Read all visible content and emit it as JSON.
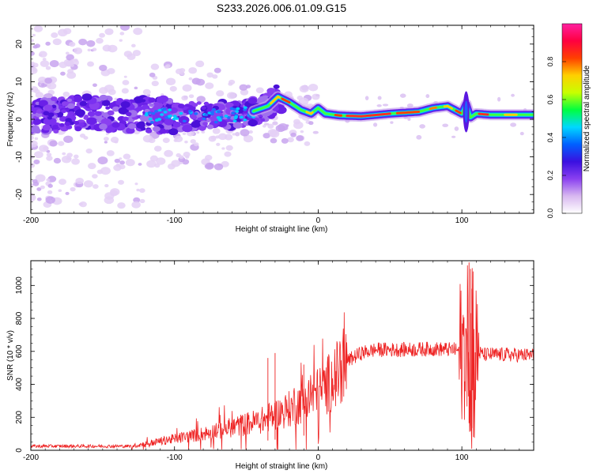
{
  "title": "S233.2026.006.01.09.G15",
  "chart_data": [
    {
      "type": "heatmap",
      "name": "spectrogram",
      "xlabel": "Height of straight line (km)",
      "ylabel": "Frequency (Hz)",
      "xlim": [
        -200,
        150
      ],
      "ylim": [
        -25,
        25
      ],
      "xticks": [
        -200,
        -100,
        0,
        100
      ],
      "xtick_labels": [
        "-200",
        "-100",
        "0",
        "100"
      ],
      "yticks": [
        -20,
        -10,
        0,
        10,
        20
      ],
      "ytick_labels": [
        "-20",
        "-10",
        "0",
        "10",
        "20"
      ],
      "grid": false,
      "colorbar": {
        "label": "Normalized spectral amplitude",
        "range": [
          0.0,
          1.0
        ],
        "ticks": [
          0.0,
          0.2,
          0.4,
          0.6,
          0.8
        ],
        "tick_labels": [
          "0.0",
          "0.2",
          "0.4",
          "0.6",
          "0.8"
        ],
        "colors": [
          "#ffffff",
          "#d8b8f0",
          "#8a40f0",
          "#3a10e0",
          "#0060ff",
          "#00d8ff",
          "#00ff40",
          "#c8ff00",
          "#ffd000",
          "#ff4000",
          "#ff0040",
          "#ff20a0"
        ]
      },
      "ridge": {
        "description": "dominant frequency track vs height",
        "x": [
          -200,
          -160,
          -120,
          -80,
          -50,
          -35,
          -28,
          -20,
          -12,
          -5,
          0,
          5,
          15,
          30,
          50,
          70,
          80,
          90,
          95,
          100,
          103,
          106,
          110,
          120,
          135,
          150
        ],
        "y": [
          1.0,
          1.5,
          1.0,
          0.8,
          1.5,
          3.5,
          6.0,
          4.5,
          2.5,
          1.5,
          3.0,
          1.5,
          1.0,
          0.8,
          1.5,
          2.0,
          3.0,
          3.5,
          2.5,
          1.5,
          4.0,
          0.5,
          1.5,
          1.2,
          1.2,
          1.2
        ]
      }
    },
    {
      "type": "line",
      "name": "snr",
      "xlabel": "Height of straight line (km)",
      "ylabel": "SNR (10 * v/v)",
      "xlim": [
        -200,
        150
      ],
      "ylim": [
        0,
        1150
      ],
      "xticks": [
        -200,
        -100,
        0,
        100
      ],
      "xtick_labels": [
        "-200",
        "-100",
        "0",
        "100"
      ],
      "yticks": [
        0,
        200,
        400,
        600,
        800,
        1000
      ],
      "ytick_labels": [
        "0",
        "200",
        "400",
        "600",
        "800",
        "1000"
      ],
      "color": "#ee2222",
      "grid": false,
      "trend": {
        "x": [
          -200,
          -130,
          -120,
          -100,
          -80,
          -60,
          -40,
          -20,
          -5,
          5,
          15,
          20,
          30,
          40,
          60,
          80,
          95,
          100,
          103,
          106,
          108,
          110,
          115,
          130,
          150
        ],
        "y": [
          25,
          25,
          40,
          70,
          100,
          140,
          180,
          250,
          320,
          380,
          480,
          540,
          590,
          610,
          610,
          615,
          610,
          600,
          650,
          500,
          400,
          600,
          580,
          580,
          575
        ]
      },
      "peaks": {
        "x": [
          -35,
          -30,
          -10,
          105,
          106,
          107
        ],
        "y": [
          560,
          590,
          520,
          1140,
          1100,
          980
        ]
      }
    }
  ]
}
